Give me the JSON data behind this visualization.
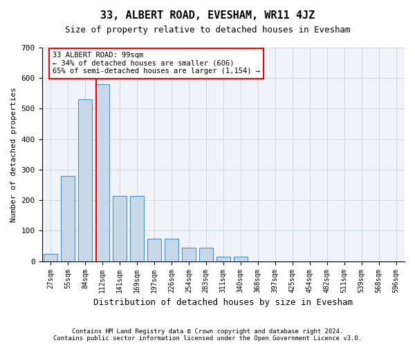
{
  "title": "33, ALBERT ROAD, EVESHAM, WR11 4JZ",
  "subtitle": "Size of property relative to detached houses in Evesham",
  "xlabel": "Distribution of detached houses by size in Evesham",
  "ylabel": "Number of detached properties",
  "footer_line1": "Contains HM Land Registry data © Crown copyright and database right 2024.",
  "footer_line2": "Contains public sector information licensed under the Open Government Licence v3.0.",
  "bin_labels": [
    "27sqm",
    "55sqm",
    "84sqm",
    "112sqm",
    "141sqm",
    "169sqm",
    "197sqm",
    "226sqm",
    "254sqm",
    "283sqm",
    "311sqm",
    "340sqm",
    "368sqm",
    "397sqm",
    "425sqm",
    "454sqm",
    "482sqm",
    "511sqm",
    "539sqm",
    "568sqm",
    "596sqm"
  ],
  "bar_values": [
    25,
    280,
    530,
    580,
    215,
    215,
    75,
    75,
    45,
    45,
    15,
    15,
    0,
    0,
    0,
    0,
    0,
    0,
    0,
    0,
    0
  ],
  "bar_color": "#c8d8e8",
  "bar_edge_color": "#4a90c8",
  "red_line_x": 2.65,
  "annotation_text_line1": "33 ALBERT ROAD: 99sqm",
  "annotation_text_line2": "← 34% of detached houses are smaller (606)",
  "annotation_text_line3": "65% of semi-detached houses are larger (1,154) →",
  "ylim": [
    0,
    700
  ],
  "yticks": [
    0,
    100,
    200,
    300,
    400,
    500,
    600,
    700
  ],
  "grid_color": "#d0d8e0",
  "background_color": "#f0f4f8"
}
